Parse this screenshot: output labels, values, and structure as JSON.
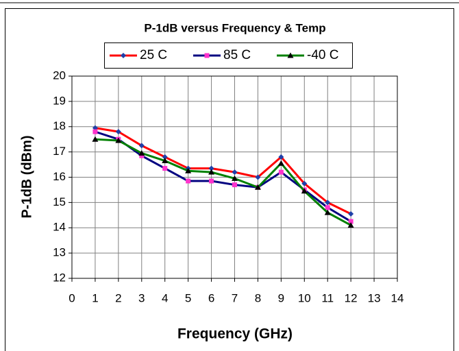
{
  "chart_data": {
    "type": "line",
    "title": "P-1dB versus Frequency & Temp",
    "x_label": "Frequency (GHz)",
    "y_label": "P-1dB (dBm)",
    "x": [
      1,
      2,
      3,
      4,
      5,
      6,
      7,
      8,
      9,
      10,
      11,
      12
    ],
    "series": [
      {
        "name": "25 C",
        "color": "#ff0000",
        "marker": "diamond",
        "marker_color": "#1f3fa8",
        "values": [
          17.95,
          17.8,
          17.25,
          16.8,
          16.35,
          16.35,
          16.2,
          16.0,
          16.8,
          15.75,
          15.0,
          14.55
        ]
      },
      {
        "name": "85 C",
        "color": "#000080",
        "marker": "square",
        "marker_color": "#ff33cc",
        "values": [
          17.8,
          17.5,
          16.85,
          16.35,
          15.85,
          15.85,
          15.7,
          15.6,
          16.2,
          15.5,
          14.8,
          14.25
        ]
      },
      {
        "name": "-40 C",
        "color": "#008000",
        "marker": "triangle",
        "marker_color": "#000000",
        "values": [
          17.5,
          17.45,
          16.95,
          16.65,
          16.25,
          16.2,
          15.95,
          15.6,
          16.55,
          15.45,
          14.6,
          14.1
        ]
      }
    ],
    "xlim": [
      0,
      14
    ],
    "xticks": [
      0,
      1,
      2,
      3,
      4,
      5,
      6,
      7,
      8,
      9,
      10,
      11,
      12,
      13,
      14
    ],
    "ylim": [
      12,
      20
    ],
    "yticks": [
      12,
      13,
      14,
      15,
      16,
      17,
      18,
      19,
      20
    ],
    "grid": true,
    "legend": "top"
  }
}
